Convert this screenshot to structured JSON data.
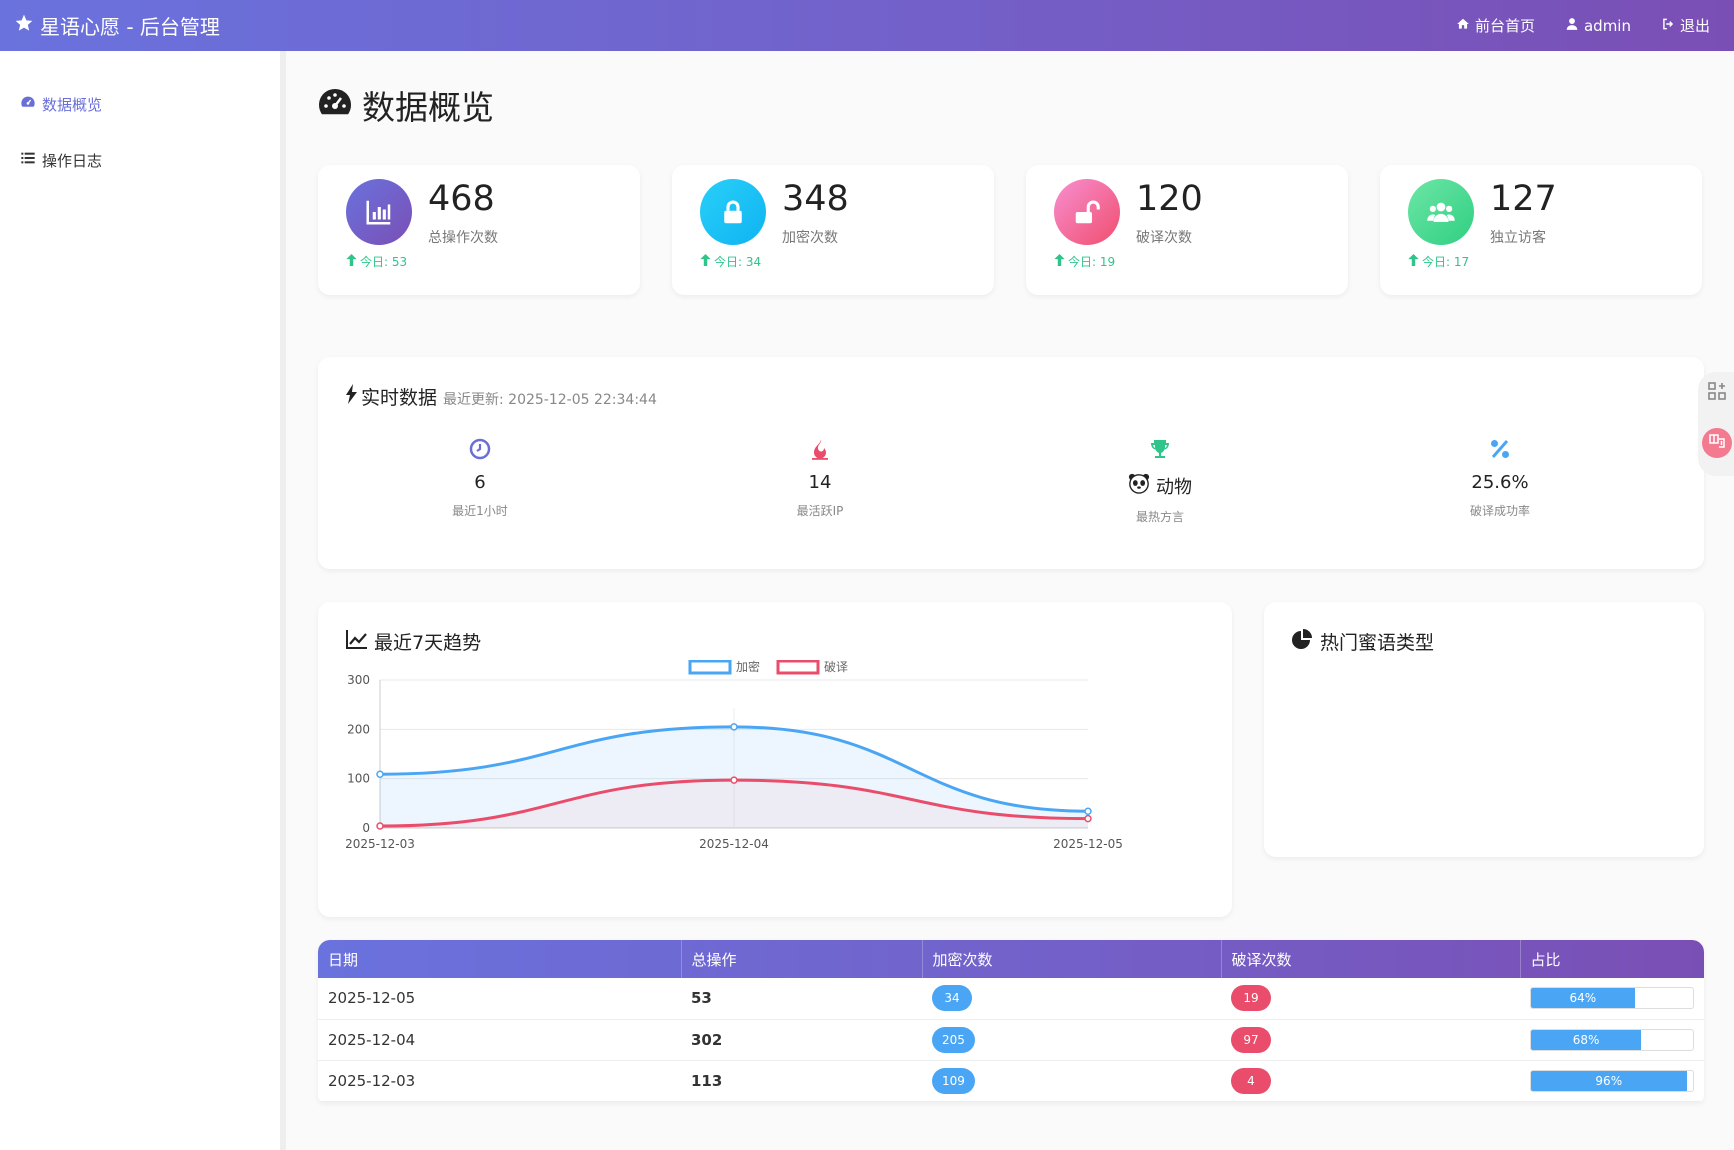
{
  "app": {
    "title": "星语心愿 - 后台管理"
  },
  "topnav": {
    "home": "前台首页",
    "user": "admin",
    "logout": "退出"
  },
  "sidebar": {
    "items": [
      {
        "label": "数据概览",
        "active": true
      },
      {
        "label": "操作日志",
        "active": false
      }
    ]
  },
  "page": {
    "title": "数据概览"
  },
  "stats": [
    {
      "value": "468",
      "label": "总操作次数",
      "today": "今日: 53",
      "color": "#7153c6"
    },
    {
      "value": "348",
      "label": "加密次数",
      "today": "今日: 34",
      "color": "#16c0f5"
    },
    {
      "value": "120",
      "label": "破译次数",
      "today": "今日: 19",
      "color": "#f05a8a"
    },
    {
      "value": "127",
      "label": "独立访客",
      "today": "今日: 17",
      "color": "#3fd98c"
    }
  ],
  "realtime": {
    "title": "实时数据",
    "updated": "最近更新: 2025-12-05 22:34:44",
    "items": [
      {
        "value": "6",
        "label": "最近1小时",
        "icon": "clock-icon"
      },
      {
        "value": "14",
        "label": "最活跃IP",
        "icon": "fire-icon"
      },
      {
        "value": "动物",
        "label": "最热方言",
        "icon": "trophy-icon"
      },
      {
        "value": "25.6%",
        "label": "破译成功率",
        "icon": "percent-icon"
      }
    ]
  },
  "trend": {
    "title": "最近7天趋势"
  },
  "pie": {
    "title": "热门蜜语类型"
  },
  "chart_data": {
    "type": "line",
    "x": [
      "2025-12-03",
      "2025-12-04",
      "2025-12-05"
    ],
    "series": [
      {
        "name": "加密",
        "values": [
          109,
          205,
          34
        ],
        "color": "#4aa6f4"
      },
      {
        "name": "破译",
        "values": [
          4,
          97,
          19
        ],
        "color": "#ea4d6b"
      }
    ],
    "yticks": [
      "0",
      "100",
      "200",
      "300"
    ],
    "ylim": [
      0,
      300
    ],
    "legend": "top",
    "area": true,
    "smooth": true
  },
  "table": {
    "headers": [
      "日期",
      "总操作",
      "加密次数",
      "破译次数",
      "占比"
    ],
    "rows": [
      {
        "date": "2025-12-05",
        "total": "53",
        "enc": "34",
        "dec": "19",
        "pct": "64%",
        "pct_value": 64
      },
      {
        "date": "2025-12-04",
        "total": "302",
        "enc": "205",
        "dec": "97",
        "pct": "68%",
        "pct_value": 68
      },
      {
        "date": "2025-12-03",
        "total": "113",
        "enc": "109",
        "dec": "4",
        "pct": "96%",
        "pct_value": 96
      }
    ]
  }
}
